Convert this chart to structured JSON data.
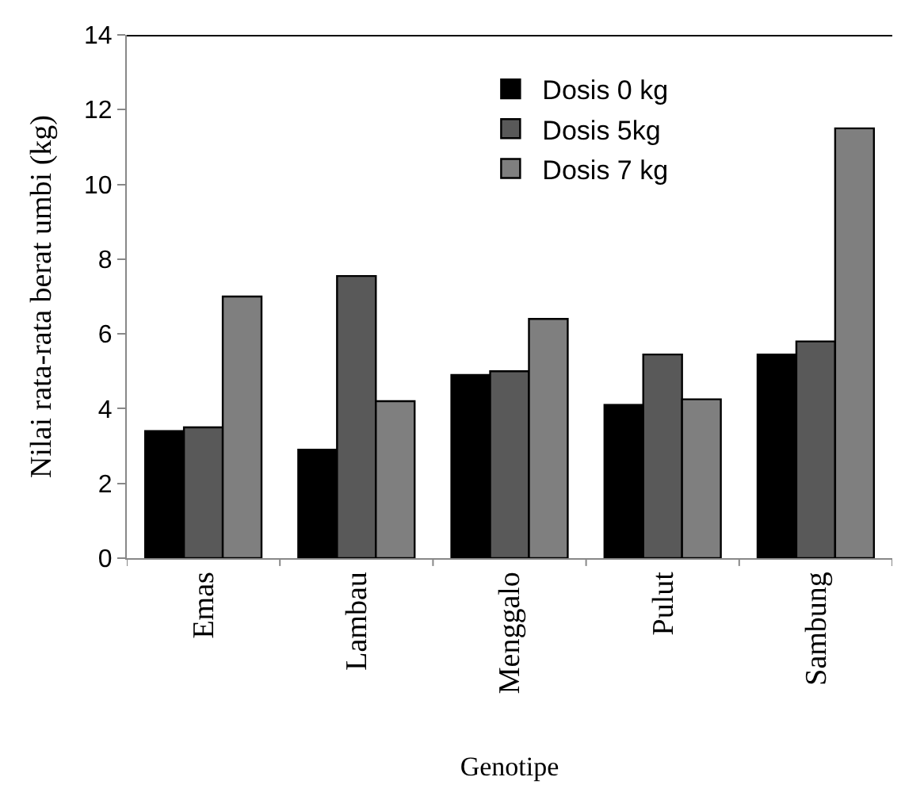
{
  "chart_data": {
    "type": "bar",
    "xlabel": "Genotipe",
    "ylabel": "Nilai rata-rata berat umbi (kg)",
    "categories": [
      "Emas",
      "Lambau",
      "Menggalo",
      "Pulut",
      "Sambung"
    ],
    "series": [
      {
        "name": "Dosis 0 kg",
        "color": "#000000",
        "values": [
          3.4,
          2.9,
          4.9,
          4.1,
          5.45
        ]
      },
      {
        "name": "Dosis 5kg",
        "color": "#595959",
        "values": [
          3.5,
          7.55,
          5.0,
          5.45,
          5.8
        ]
      },
      {
        "name": "Dosis 7 kg",
        "color": "#7f7f7f",
        "values": [
          7.0,
          4.2,
          6.4,
          4.25,
          11.5
        ]
      }
    ],
    "ylim": [
      0,
      14
    ],
    "yticks": [
      0,
      2,
      4,
      6,
      8,
      10,
      12,
      14
    ],
    "grid": false,
    "legend": "top right"
  }
}
